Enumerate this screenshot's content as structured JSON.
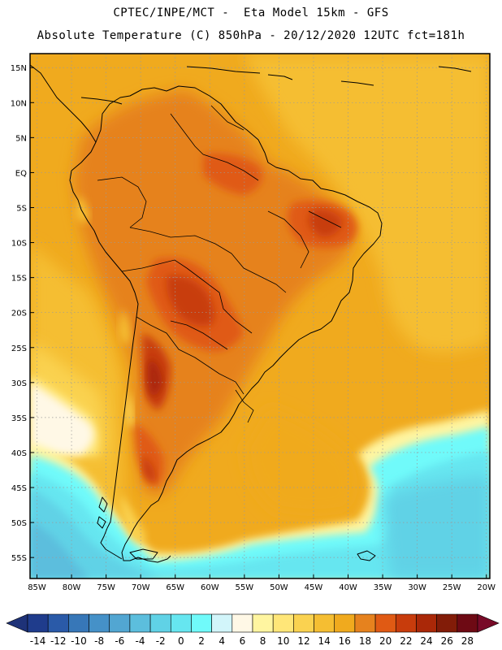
{
  "header": {
    "line1": "CPTEC/INPE/MCT -  Eta Model 15km - GFS",
    "line2": "Absolute Temperature (C) 850hPa - 20/12/2020 12UTC fct=181h"
  },
  "axes": {
    "lat_labels": [
      "15N",
      "10N",
      "5N",
      "EQ",
      "5S",
      "10S",
      "15S",
      "20S",
      "25S",
      "30S",
      "35S",
      "40S",
      "45S",
      "50S",
      "55S"
    ],
    "lat_values": [
      15,
      10,
      5,
      0,
      -5,
      -10,
      -15,
      -20,
      -25,
      -30,
      -35,
      -40,
      -45,
      -50,
      -55
    ],
    "lon_labels": [
      "85W",
      "80W",
      "75W",
      "70W",
      "65W",
      "60W",
      "55W",
      "50W",
      "45W",
      "40W",
      "35W",
      "30W",
      "25W",
      "20W"
    ],
    "lon_values": [
      -85,
      -80,
      -75,
      -70,
      -65,
      -60,
      -55,
      -50,
      -45,
      -40,
      -35,
      -30,
      -25,
      -20
    ],
    "lat_range": [
      -58,
      17
    ],
    "lon_range": [
      -86,
      -19.5
    ],
    "grid": "dotted"
  },
  "colorbar": {
    "labels": [
      "-14",
      "-12",
      "-10",
      "-8",
      "-6",
      "-4",
      "-2",
      "0",
      "2",
      "4",
      "6",
      "8",
      "10",
      "12",
      "14",
      "16",
      "18",
      "20",
      "22",
      "24",
      "26",
      "28"
    ],
    "colors": [
      "#1f3c8c",
      "#2a5aa8",
      "#3777b8",
      "#4591c8",
      "#52a6d2",
      "#5cbedd",
      "#60d2e6",
      "#66e6f0",
      "#70fafa",
      "#d2f5fa",
      "#fff8e6",
      "#fff5a0",
      "#ffe678",
      "#fad250",
      "#f5be32",
      "#f0aa1e",
      "#e6821e",
      "#e05a14",
      "#c83c0c",
      "#aa2808",
      "#821c08",
      "#6e0a14"
    ],
    "under_color": "#1e3278",
    "over_color": "#780a28"
  },
  "legend": {
    "colors": {
      "land_line": "#000000",
      "grid_line": "#9a9a9a"
    }
  }
}
